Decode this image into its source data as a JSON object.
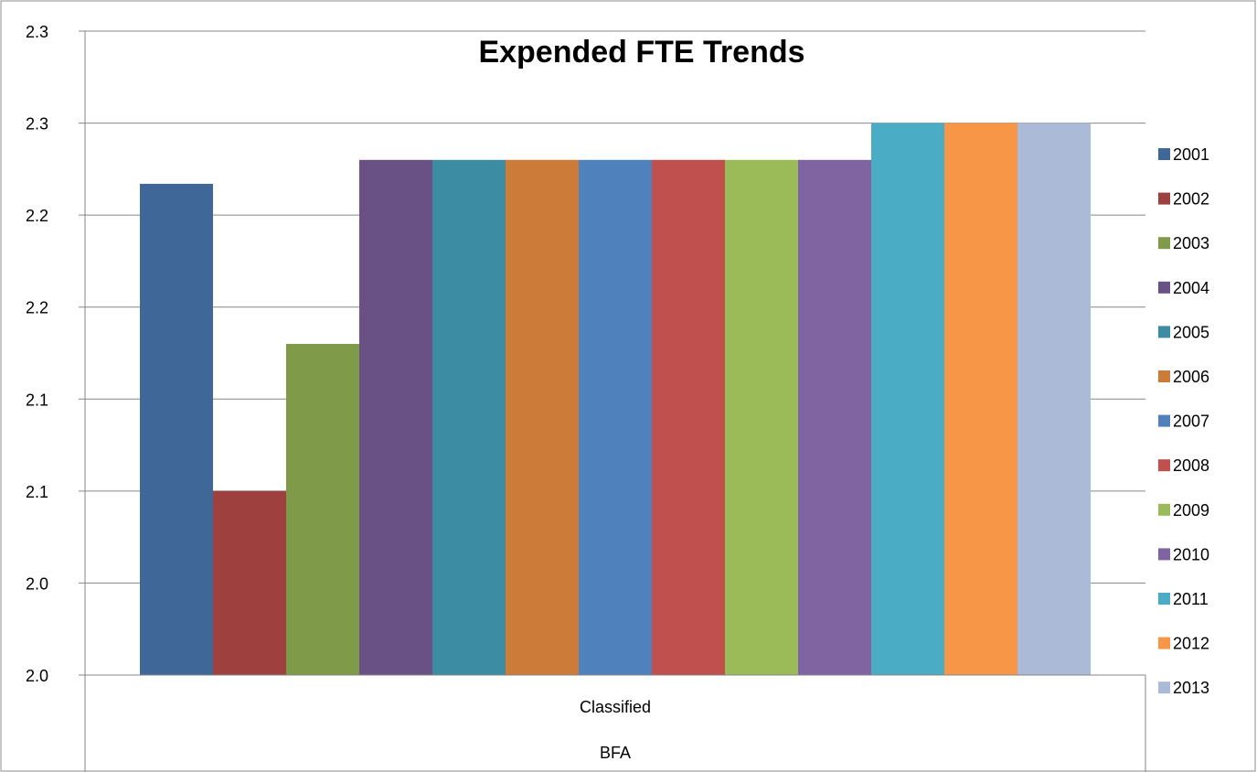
{
  "chart_data": {
    "type": "bar",
    "title": "Expended FTE Trends",
    "xlabel": "",
    "ylabel": "",
    "category_levels": [
      "Classified",
      "BFA"
    ],
    "ytick_labels": [
      "2.0",
      "2.0",
      "2.1",
      "2.1",
      "2.2",
      "2.2",
      "2.3",
      "2.3"
    ],
    "ylim": [
      2.0,
      2.35
    ],
    "grid": true,
    "legend_position": "right",
    "series": [
      {
        "name": "2001",
        "value": 2.267,
        "color": "#3F6797"
      },
      {
        "name": "2002",
        "value": 2.1,
        "color": "#9E413E"
      },
      {
        "name": "2003",
        "value": 2.18,
        "color": "#7F9A48"
      },
      {
        "name": "2004",
        "value": 2.28,
        "color": "#695185"
      },
      {
        "name": "2005",
        "value": 2.28,
        "color": "#3C8DA3"
      },
      {
        "name": "2006",
        "value": 2.28,
        "color": "#CC7B38"
      },
      {
        "name": "2007",
        "value": 2.28,
        "color": "#4F81BD"
      },
      {
        "name": "2008",
        "value": 2.28,
        "color": "#C0504D"
      },
      {
        "name": "2009",
        "value": 2.28,
        "color": "#9BBB59"
      },
      {
        "name": "2010",
        "value": 2.28,
        "color": "#8064A2"
      },
      {
        "name": "2011",
        "value": 2.3,
        "color": "#4BACC6"
      },
      {
        "name": "2012",
        "value": 2.3,
        "color": "#F79646"
      },
      {
        "name": "2013",
        "value": 2.3,
        "color": "#AABAD7"
      }
    ]
  }
}
